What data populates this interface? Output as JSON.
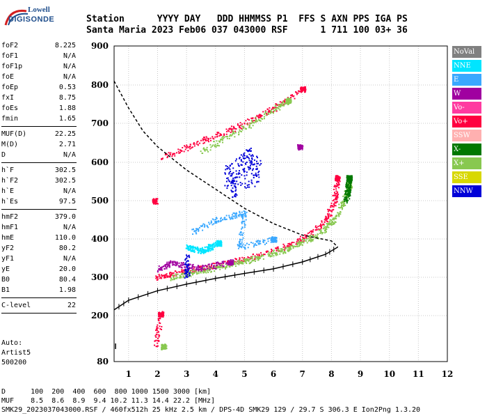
{
  "logo": {
    "line1": "Lowell",
    "line2": "DIGISONDE"
  },
  "header": {
    "row1": "Station      YYYY DAY   DDD HHMMSS P1  FFS S AXN PPS IGA PS",
    "row2": "Santa Maria 2023 Feb06 037 043000 RSF      1 711 100 03+ 36"
  },
  "params": [
    {
      "k": "foF2",
      "v": "8.225"
    },
    {
      "k": "foF1",
      "v": "N/A"
    },
    {
      "k": "foF1p",
      "v": "N/A"
    },
    {
      "k": "foE",
      "v": "N/A"
    },
    {
      "k": "foEp",
      "v": "0.53"
    },
    {
      "k": "fxI",
      "v": "8.75"
    },
    {
      "k": "foEs",
      "v": "1.88"
    },
    {
      "k": "fmin",
      "v": "1.65"
    },
    {
      "k": "MUF(D)",
      "v": "22.25"
    },
    {
      "k": "M(D)",
      "v": "2.71"
    },
    {
      "k": "D",
      "v": "N/A"
    },
    {
      "k": "h`F",
      "v": "302.5"
    },
    {
      "k": "h`F2",
      "v": "302.5"
    },
    {
      "k": "h`E",
      "v": "N/A"
    },
    {
      "k": "h`Es",
      "v": "97.5"
    },
    {
      "k": "hmF2",
      "v": "379.0"
    },
    {
      "k": "hmF1",
      "v": "N/A"
    },
    {
      "k": "hmE",
      "v": "110.0"
    },
    {
      "k": "yF2",
      "v": "80.2"
    },
    {
      "k": "yF1",
      "v": "N/A"
    },
    {
      "k": "yE",
      "v": "20.0"
    },
    {
      "k": "B0",
      "v": "80.4"
    },
    {
      "k": "B1",
      "v": "1.98"
    },
    {
      "k": "C-level",
      "v": "22"
    }
  ],
  "auto": {
    "line1": "Auto:",
    "line2": "Artist5",
    "line3": "500200"
  },
  "legend": [
    {
      "label": "NoVal",
      "color": "#808080"
    },
    {
      "label": "NNE",
      "color": "#00e5ff"
    },
    {
      "label": "E",
      "color": "#3aa8ff"
    },
    {
      "label": "W",
      "color": "#a000a0"
    },
    {
      "label": "Vo-",
      "color": "#ff3aa0"
    },
    {
      "label": "Vo+",
      "color": "#ff0040"
    },
    {
      "label": "SSW",
      "color": "#ffb0b0"
    },
    {
      "label": "X-",
      "color": "#007800"
    },
    {
      "label": "X+",
      "color": "#88c850"
    },
    {
      "label": "SSE",
      "color": "#d8d800"
    },
    {
      "label": "NNW",
      "color": "#0000d8"
    }
  ],
  "footer": {
    "line1": "D      100  200  400  600  800 1000 1500 3000 [km]",
    "line2": "MUF    8.5  8.6  8.9  9.4 10.2 11.3 14.4 22.2 [MHz]",
    "line3": "SMK29_2023037043000.RSF / 460fx512h 25 kHz 2.5 km / DPS-4D SMK29 129 / 29.7 S 306.3 E Ion2Png 1.3.20"
  },
  "chart_data": {
    "type": "scatter",
    "xlabel": "",
    "ylabel": "",
    "xlim": [
      0.5,
      12
    ],
    "ylim": [
      80,
      900
    ],
    "x_ticks": [
      1,
      2,
      3,
      4,
      5,
      6,
      7,
      8,
      9,
      10,
      11,
      12
    ],
    "y_ticks": [
      80,
      200,
      300,
      400,
      500,
      600,
      700,
      800,
      900
    ],
    "grid": true,
    "legend_position": "right",
    "series": [
      {
        "name": "Vo+",
        "color": "#ff0040",
        "points": [
          [
            1.9,
            300
          ],
          [
            2.5,
            310
          ],
          [
            3.5,
            325
          ],
          [
            4.5,
            340
          ],
          [
            5.5,
            360
          ],
          [
            6.5,
            385
          ],
          [
            7.2,
            410
          ],
          [
            7.8,
            450
          ],
          [
            8.1,
            500
          ],
          [
            8.2,
            560
          ],
          [
            2.0,
            610
          ],
          [
            3.0,
            640
          ],
          [
            4.0,
            670
          ],
          [
            5.0,
            700
          ],
          [
            6.0,
            740
          ],
          [
            7.0,
            790
          ],
          [
            1.9,
            120
          ],
          [
            2.1,
            205
          ],
          [
            1.9,
            500
          ]
        ]
      },
      {
        "name": "X+",
        "color": "#88c850",
        "points": [
          [
            2.4,
            300
          ],
          [
            3.5,
            318
          ],
          [
            4.5,
            335
          ],
          [
            5.5,
            352
          ],
          [
            6.5,
            375
          ],
          [
            7.5,
            410
          ],
          [
            8.2,
            460
          ],
          [
            8.6,
            540
          ],
          [
            3.5,
            630
          ],
          [
            5.0,
            690
          ],
          [
            6.5,
            760
          ],
          [
            2.2,
            120
          ]
        ]
      },
      {
        "name": "W",
        "color": "#a000a0",
        "points": [
          [
            2.0,
            320
          ],
          [
            2.5,
            340
          ],
          [
            3.0,
            330
          ],
          [
            3.5,
            325
          ],
          [
            4.5,
            340
          ],
          [
            6.9,
            640
          ]
        ]
      },
      {
        "name": "NNW",
        "color": "#0000d8",
        "points": [
          [
            4.3,
            560
          ],
          [
            4.8,
            590
          ],
          [
            5.2,
            610
          ],
          [
            5.5,
            575
          ],
          [
            4.6,
            540
          ],
          [
            3.0,
            330
          ]
        ]
      },
      {
        "name": "E",
        "color": "#3aa8ff",
        "points": [
          [
            3.2,
            420
          ],
          [
            4.0,
            450
          ],
          [
            5.0,
            470
          ],
          [
            4.8,
            380
          ],
          [
            6.0,
            400
          ]
        ]
      },
      {
        "name": "NNE",
        "color": "#00e5ff",
        "points": [
          [
            3.0,
            380
          ],
          [
            3.5,
            370
          ],
          [
            4.1,
            390
          ]
        ]
      },
      {
        "name": "X-",
        "color": "#007800",
        "points": [
          [
            8.5,
            500
          ],
          [
            8.6,
            560
          ]
        ]
      }
    ],
    "profile_curve": [
      [
        0.5,
        215
      ],
      [
        1,
        240
      ],
      [
        2,
        265
      ],
      [
        3,
        282
      ],
      [
        4,
        297
      ],
      [
        5,
        310
      ],
      [
        6,
        322
      ],
      [
        7,
        340
      ],
      [
        7.8,
        360
      ],
      [
        8.22,
        379
      ]
    ],
    "topside_dashed": [
      [
        0.5,
        810
      ],
      [
        1,
        740
      ],
      [
        1.5,
        680
      ],
      [
        2,
        640
      ],
      [
        2.5,
        610
      ],
      [
        3,
        580
      ],
      [
        4,
        530
      ],
      [
        5,
        480
      ],
      [
        6,
        440
      ],
      [
        7,
        410
      ],
      [
        8,
        395
      ],
      [
        8.22,
        379
      ]
    ],
    "bottom_dashed": [
      [
        8.22,
        379
      ],
      [
        7.8,
        363
      ],
      [
        7,
        342
      ],
      [
        6,
        322
      ],
      [
        5,
        310
      ],
      [
        4,
        297
      ],
      [
        3,
        282
      ],
      [
        2,
        265
      ],
      [
        1,
        240
      ],
      [
        0.5,
        215
      ]
    ]
  }
}
